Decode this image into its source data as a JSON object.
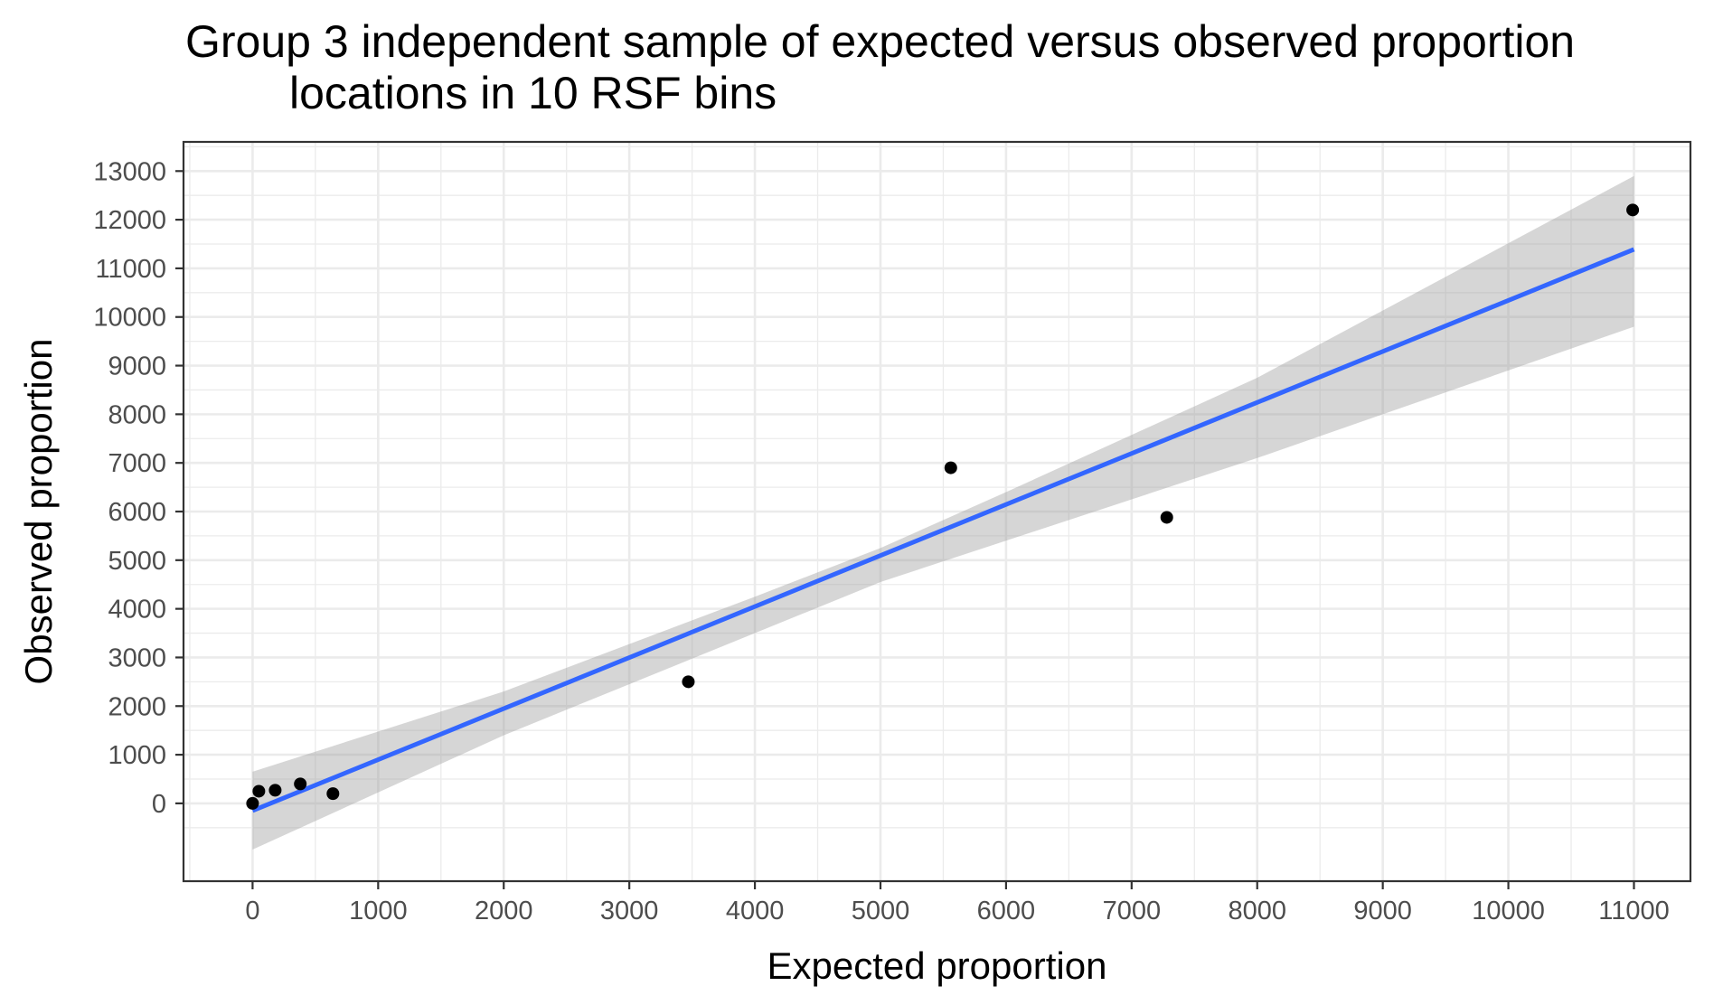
{
  "chart_data": {
    "type": "scatter",
    "title_line1": "Group 3 independent sample of expected versus observed proportion",
    "title_line2": "locations in 10 RSF bins",
    "xlabel": "Expected proportion",
    "ylabel": "Observed proportion",
    "xlim": [
      -550,
      11450
    ],
    "ylim": [
      -1600,
      13600
    ],
    "x_ticks": [
      0,
      1000,
      2000,
      3000,
      4000,
      5000,
      6000,
      7000,
      8000,
      9000,
      10000,
      11000
    ],
    "y_ticks": [
      0,
      1000,
      2000,
      3000,
      4000,
      5000,
      6000,
      7000,
      8000,
      9000,
      10000,
      11000,
      12000,
      13000
    ],
    "grid": true,
    "points": [
      {
        "x": 0,
        "y": 0
      },
      {
        "x": 50,
        "y": 250
      },
      {
        "x": 180,
        "y": 270
      },
      {
        "x": 380,
        "y": 400
      },
      {
        "x": 640,
        "y": 200
      },
      {
        "x": 3470,
        "y": 2500
      },
      {
        "x": 5560,
        "y": 6900
      },
      {
        "x": 7280,
        "y": 5880
      },
      {
        "x": 10990,
        "y": 12200
      }
    ],
    "fit": {
      "method": "linear regression",
      "x_range": [
        0,
        11000
      ],
      "intercept": -150,
      "slope": 1.0491,
      "ci_lower": [
        [
          0,
          -950
        ],
        [
          2000,
          1400
        ],
        [
          4000,
          3500
        ],
        [
          5000,
          4550
        ],
        [
          6000,
          5400
        ],
        [
          8000,
          7100
        ],
        [
          11000,
          9800
        ]
      ],
      "ci_upper": [
        [
          0,
          650
        ],
        [
          2000,
          2300
        ],
        [
          4000,
          4250
        ],
        [
          5000,
          5250
        ],
        [
          6000,
          6400
        ],
        [
          8000,
          8750
        ],
        [
          11000,
          12900
        ]
      ]
    },
    "colors": {
      "line": "#3366ff",
      "band": "#999999",
      "points": "#000000",
      "panel_border": "#333333",
      "grid": "#ebebeb",
      "tick_text": "#4d4d4d"
    }
  }
}
